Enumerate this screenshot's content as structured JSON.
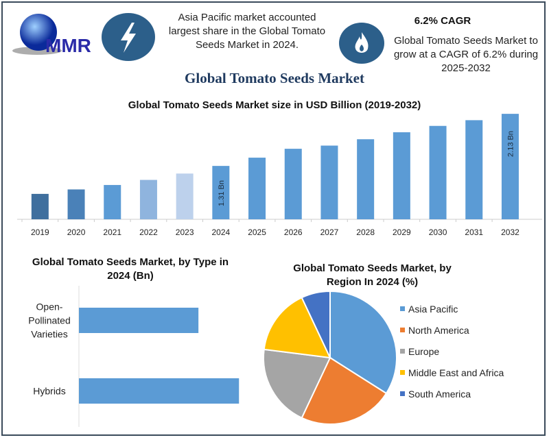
{
  "header": {
    "logo_text": "MMR",
    "left_icon": "lightning-bolt-icon",
    "left_text": "Asia Pacific market accounted largest share in the Global Tomato Seeds Market in 2024.",
    "right_icon": "flame-icon",
    "right_heading": "6.2% CAGR",
    "right_text": "Global Tomato Seeds Market to grow at a CAGR of 6.2% during 2025-2032"
  },
  "main_title": "Global Tomato Seeds Market",
  "colors": {
    "accent": "#2c5f8a",
    "bar": "#5b9bd5",
    "title": "#1f3a5f"
  },
  "chart_data": [
    {
      "type": "bar",
      "title": "Global Tomato Seeds Market size in USD Billion (2019-2032)",
      "categories": [
        "2019",
        "2020",
        "2021",
        "2022",
        "2023",
        "2024",
        "2025",
        "2026",
        "2027",
        "2028",
        "2029",
        "2030",
        "2031",
        "2032"
      ],
      "values": [
        0.87,
        0.94,
        1.01,
        1.09,
        1.19,
        1.31,
        1.44,
        1.58,
        1.63,
        1.73,
        1.84,
        1.94,
        2.03,
        2.13
      ],
      "colors": [
        "#3f6f9e",
        "#4a81b8",
        "#5b9bd5",
        "#8fb4de",
        "#bdd1ec",
        "#5b9bd5",
        "#5b9bd5",
        "#5b9bd5",
        "#5b9bd5",
        "#5b9bd5",
        "#5b9bd5",
        "#5b9bd5",
        "#5b9bd5",
        "#5b9bd5"
      ],
      "data_labels": [
        {
          "category": "2024",
          "text": "1.31 Bn"
        },
        {
          "category": "2032",
          "text": "2.13 Bn"
        }
      ],
      "grid": false
    },
    {
      "type": "bar",
      "orientation": "horizontal",
      "title": "Global Tomato Seeds Market, by Type in 2024 (Bn)",
      "categories": [
        "Open-Pollinated Varieties",
        "Hybrids"
      ],
      "category_lines": [
        [
          "Open-",
          "Pollinated",
          "Varieties"
        ],
        [
          "Hybrids"
        ]
      ],
      "values": [
        0.56,
        0.75
      ],
      "color": "#5b9bd5",
      "grid": false
    },
    {
      "type": "pie",
      "title": "Global Tomato Seeds Market, by Region In 2024 (%)",
      "categories": [
        "Asia Pacific",
        "North America",
        "Europe",
        "Middle East and Africa",
        "South America"
      ],
      "values": [
        34,
        23,
        20,
        16,
        7
      ],
      "colors": [
        "#5b9bd5",
        "#ed7d31",
        "#a5a5a5",
        "#ffc000",
        "#4472c4"
      ],
      "legend": "right"
    }
  ]
}
